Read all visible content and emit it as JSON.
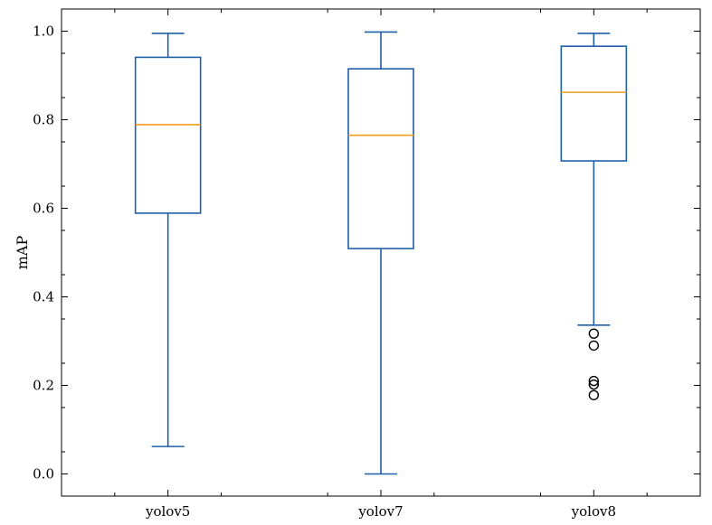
{
  "chart_data": {
    "type": "boxplot",
    "title": "",
    "xlabel": "",
    "ylabel": "mAP",
    "ylim": [
      -0.05,
      1.05
    ],
    "yticks": [
      0.0,
      0.2,
      0.4,
      0.6,
      0.8,
      1.0
    ],
    "ytick_labels": [
      "0.0",
      "0.2",
      "0.4",
      "0.6",
      "0.8",
      "1.0"
    ],
    "grid": false,
    "colors": {
      "box": "#1f5fa8",
      "median": "#f39c1f",
      "outlier": "#000000"
    },
    "categories": [
      "yolov5",
      "yolov7",
      "yolov8"
    ],
    "boxes": [
      {
        "whisker_low": 0.062,
        "q1": 0.589,
        "median": 0.789,
        "q3": 0.941,
        "whisker_high": 0.995,
        "outliers": []
      },
      {
        "whisker_low": 0.0,
        "q1": 0.509,
        "median": 0.765,
        "q3": 0.915,
        "whisker_high": 0.998,
        "outliers": []
      },
      {
        "whisker_low": 0.336,
        "q1": 0.707,
        "median": 0.862,
        "q3": 0.966,
        "whisker_high": 0.995,
        "outliers": [
          0.317,
          0.29,
          0.21,
          0.202,
          0.178
        ]
      }
    ]
  }
}
